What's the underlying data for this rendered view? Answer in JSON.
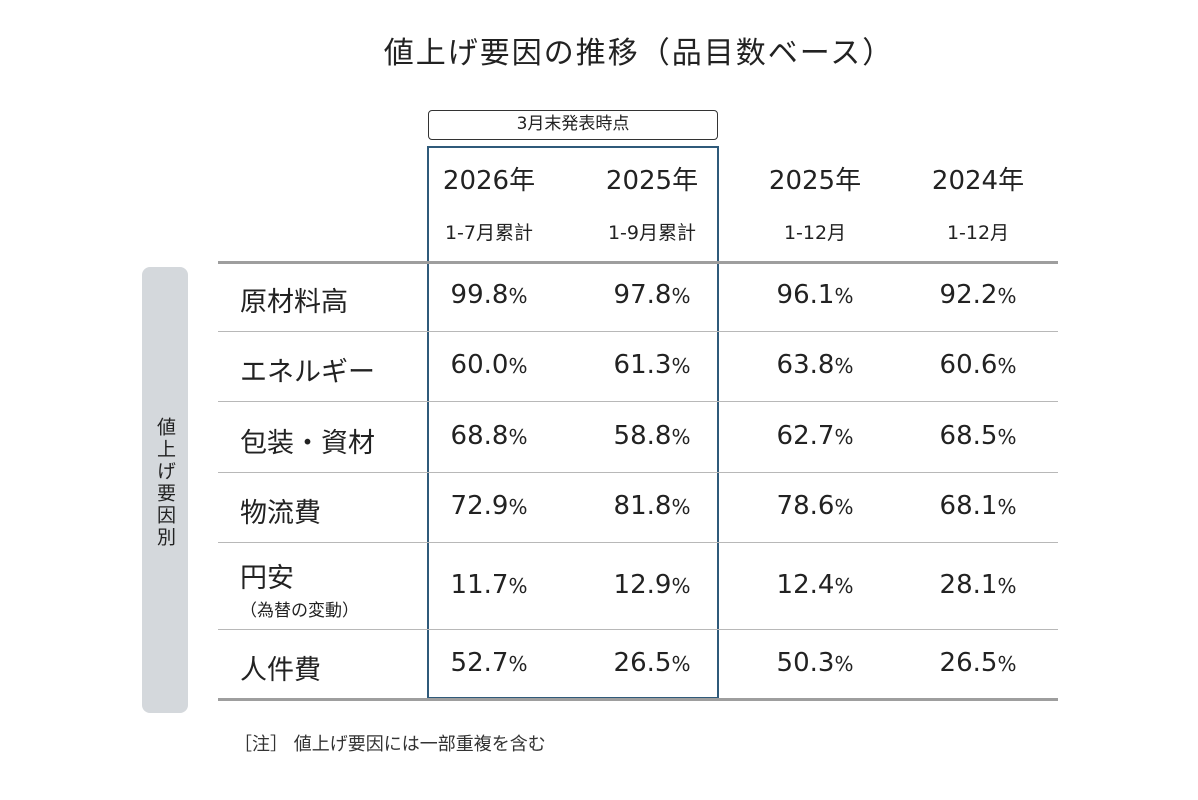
{
  "title": "値上げ要因の推移（品目数ベース）",
  "highlight_label": "3月末発表時点",
  "side_label": "値上げ要因別",
  "note": "［注］ 値上げ要因には一部重複を含む",
  "chart_data": {
    "type": "table",
    "title": "値上げ要因の推移（品目数ベース）",
    "columns": [
      {
        "year": "2026年",
        "period": "1-7月累計"
      },
      {
        "year": "2025年",
        "period": "1-9月累計"
      },
      {
        "year": "2025年",
        "period": "1-12月"
      },
      {
        "year": "2024年",
        "period": "1-12月"
      }
    ],
    "rows": [
      {
        "label": "原材料高",
        "sublabel": "",
        "values": [
          "99.8",
          "97.8",
          "96.1",
          "92.2"
        ]
      },
      {
        "label": "エネルギー",
        "sublabel": "",
        "values": [
          "60.0",
          "61.3",
          "63.8",
          "60.6"
        ]
      },
      {
        "label": "包装・資材",
        "sublabel": "",
        "values": [
          "68.8",
          "58.8",
          "62.7",
          "68.5"
        ]
      },
      {
        "label": "物流費",
        "sublabel": "",
        "values": [
          "72.9",
          "81.8",
          "78.6",
          "68.1"
        ]
      },
      {
        "label": "円安",
        "sublabel": "（為替の変動）",
        "values": [
          "11.7",
          "12.9",
          "12.4",
          "28.1"
        ]
      },
      {
        "label": "人件費",
        "sublabel": "",
        "values": [
          "52.7",
          "26.5",
          "50.3",
          "26.5"
        ]
      }
    ],
    "unit": "%"
  }
}
